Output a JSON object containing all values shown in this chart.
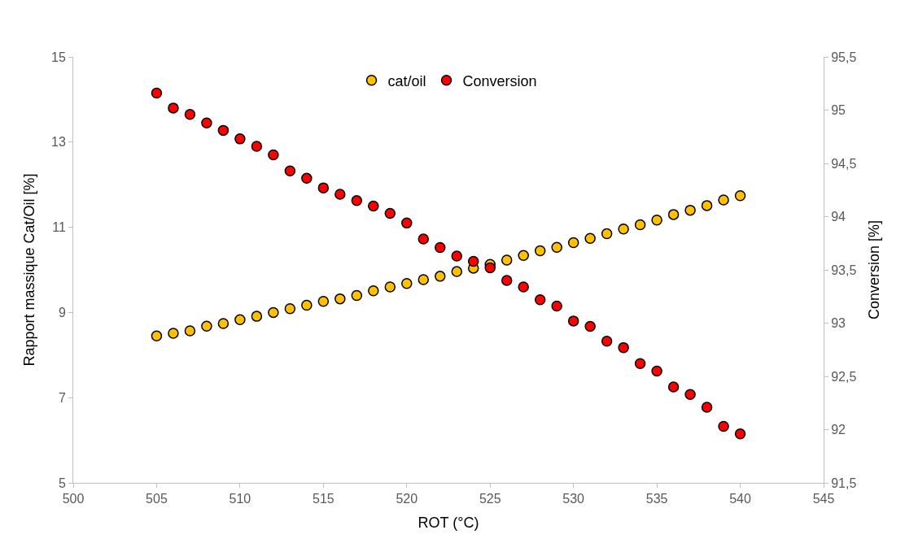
{
  "chart_data": {
    "type": "scatter",
    "xlabel": "ROT (°C)",
    "ylabel": "Rapport massique Cat/Oil [%]",
    "y2label": "Conversion [%]",
    "x": [
      505,
      506,
      507,
      508,
      509,
      510,
      511,
      512,
      513,
      514,
      515,
      516,
      517,
      518,
      519,
      520,
      521,
      522,
      523,
      524,
      525,
      526,
      527,
      528,
      529,
      530,
      531,
      532,
      533,
      534,
      535,
      536,
      537,
      538,
      539,
      540
    ],
    "series": [
      {
        "name": "cat/oil",
        "color": "#ffc000",
        "values": [
          8.45,
          8.51,
          8.57,
          8.68,
          8.74,
          8.83,
          8.91,
          9.0,
          9.09,
          9.17,
          9.26,
          9.32,
          9.4,
          9.51,
          9.6,
          9.68,
          9.77,
          9.85,
          9.96,
          10.04,
          10.13,
          10.23,
          10.34,
          10.45,
          10.53,
          10.64,
          10.74,
          10.85,
          10.96,
          11.06,
          11.17,
          11.3,
          11.4,
          11.51,
          11.64,
          11.74
        ]
      },
      {
        "name": "Conversion",
        "color": "#ff0000",
        "axis": "y2",
        "values": [
          95.16,
          95.02,
          94.96,
          94.88,
          94.81,
          94.73,
          94.66,
          94.58,
          94.43,
          94.36,
          94.27,
          94.21,
          94.15,
          94.1,
          94.03,
          93.94,
          93.79,
          93.71,
          93.63,
          93.58,
          93.52,
          93.4,
          93.34,
          93.22,
          93.16,
          93.02,
          92.97,
          92.83,
          92.77,
          92.62,
          92.55,
          92.4,
          92.33,
          92.21,
          92.03,
          91.96
        ]
      }
    ],
    "xlim": [
      500,
      545
    ],
    "xticks": [
      500,
      505,
      510,
      515,
      520,
      525,
      530,
      535,
      540,
      545
    ],
    "ylim": [
      5,
      15
    ],
    "yticks": [
      5,
      7,
      9,
      11,
      13,
      15
    ],
    "y2lim": [
      91.5,
      95.5
    ],
    "y2ticks": [
      {
        "value": 91.5,
        "label": "91,5"
      },
      92,
      {
        "value": 92.5,
        "label": "92,5"
      },
      93,
      {
        "value": 93.5,
        "label": "93,5"
      },
      94,
      {
        "value": 94.5,
        "label": "94,5"
      },
      95,
      {
        "value": 95.5,
        "label": "95,5"
      }
    ],
    "marker": "circle",
    "legend": "top"
  }
}
